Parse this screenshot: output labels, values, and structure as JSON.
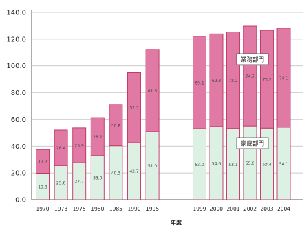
{
  "chart_data": {
    "type": "bar",
    "stacked": true,
    "xlabel": "年度",
    "ylabel": "",
    "ylim": [
      0,
      140
    ],
    "yticks": [
      "0.0",
      "20.0",
      "40.0",
      "60.0",
      "80.0",
      "100.0",
      "120.0",
      "140.0"
    ],
    "grid": true,
    "categories": [
      "1970",
      "1973",
      "1975",
      "1980",
      "1985",
      "1990",
      "1995",
      "1999",
      "2000",
      "2001",
      "2002",
      "2003",
      "2004"
    ],
    "series": [
      {
        "name": "家庭部門",
        "color": "#dcf0e4",
        "values": [
          19.8,
          25.6,
          27.7,
          33.0,
          40.3,
          42.7,
          51.0,
          53.0,
          54.6,
          53.1,
          55.0,
          53.4,
          54.1
        ],
        "labels": [
          "19.8",
          "25.6",
          "27.7",
          "33.0",
          "40.3",
          "42.7",
          "51.0",
          "53.0",
          "54.6",
          "53.1",
          "55.0",
          "53.4",
          "54.1"
        ]
      },
      {
        "name": "業務部門",
        "color": "#e07aa4",
        "values": [
          17.7,
          26.4,
          25.9,
          28.2,
          30.8,
          52.3,
          61.3,
          69.1,
          69.3,
          72.2,
          74.7,
          73.2,
          74.1
        ],
        "labels": [
          "17.7",
          "26.4",
          "25.9",
          "28.2",
          "30.8",
          "52.3",
          "61.3",
          "69.1",
          "69.3",
          "72.2",
          "74.7",
          "73.2",
          "74.1"
        ]
      }
    ],
    "legend_labels": [
      "業務部門",
      "家庭部門"
    ]
  }
}
